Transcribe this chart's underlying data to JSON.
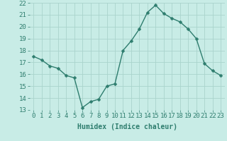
{
  "x": [
    0,
    1,
    2,
    3,
    4,
    5,
    6,
    7,
    8,
    9,
    10,
    11,
    12,
    13,
    14,
    15,
    16,
    17,
    18,
    19,
    20,
    21,
    22,
    23
  ],
  "y": [
    17.5,
    17.2,
    16.7,
    16.5,
    15.9,
    15.7,
    13.2,
    13.7,
    13.9,
    15.0,
    15.2,
    18.0,
    18.8,
    19.8,
    21.2,
    21.8,
    21.1,
    20.7,
    20.4,
    19.8,
    19.0,
    16.9,
    16.3,
    15.9
  ],
  "line_color": "#2e7d6e",
  "marker_color": "#2e7d6e",
  "bg_color": "#c8ece6",
  "grid_color": "#aad4cc",
  "xlabel": "Humidex (Indice chaleur)",
  "ylim": [
    13,
    22
  ],
  "xlim": [
    -0.5,
    23.5
  ],
  "yticks": [
    13,
    14,
    15,
    16,
    17,
    18,
    19,
    20,
    21,
    22
  ],
  "xticks": [
    0,
    1,
    2,
    3,
    4,
    5,
    6,
    7,
    8,
    9,
    10,
    11,
    12,
    13,
    14,
    15,
    16,
    17,
    18,
    19,
    20,
    21,
    22,
    23
  ],
  "xlabel_fontsize": 7,
  "tick_fontsize": 6.5,
  "marker_size": 2.5,
  "line_width": 1.0
}
